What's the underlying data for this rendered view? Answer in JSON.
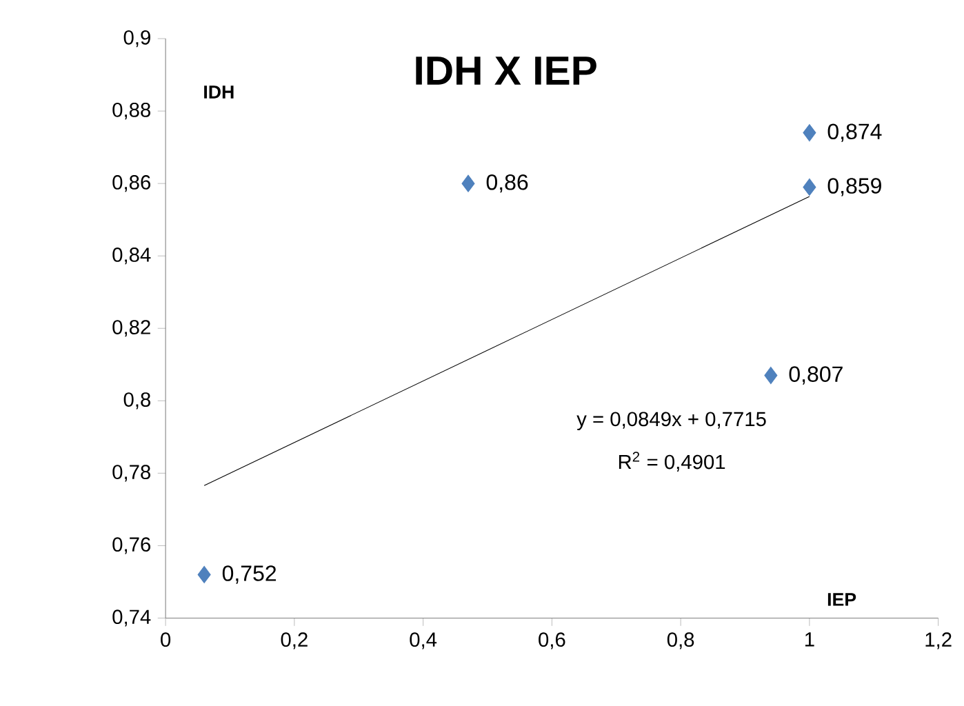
{
  "chart_data": {
    "type": "scatter",
    "title": "IDH X IEP",
    "xlabel": "IEP",
    "ylabel": "IDH",
    "xlim": [
      0,
      1.2
    ],
    "ylim": [
      0.74,
      0.9
    ],
    "xticks": [
      0,
      {
        "value": 0.2,
        "label": "0,2"
      },
      {
        "value": 0.4,
        "label": "0,4"
      },
      {
        "value": 0.6,
        "label": "0,6"
      },
      {
        "value": 0.8,
        "label": "0,8"
      },
      1,
      {
        "value": 1.2,
        "label": "1,2"
      }
    ],
    "yticks": [
      {
        "value": 0.74,
        "label": "0,74"
      },
      {
        "value": 0.76,
        "label": "0,76"
      },
      {
        "value": 0.78,
        "label": "0,78"
      },
      {
        "value": 0.8,
        "label": "0,8"
      },
      {
        "value": 0.82,
        "label": "0,82"
      },
      {
        "value": 0.84,
        "label": "0,84"
      },
      {
        "value": 0.86,
        "label": "0,86"
      },
      {
        "value": 0.88,
        "label": "0,88"
      },
      {
        "value": 0.9,
        "label": "0,9"
      }
    ],
    "grid": false,
    "legend": false,
    "marker": "diamond",
    "series": [
      {
        "color": "#4f81bd",
        "x": [
          0.06,
          0.47,
          1,
          1,
          0.94
        ],
        "values": [
          0.752,
          0.86,
          0.874,
          0.859,
          0.807
        ],
        "value_labels": [
          "0,752",
          "0,86",
          "0,874",
          "0,859",
          "0,807"
        ]
      },
      {
        "type": "line",
        "color": "#000000",
        "marker": "none",
        "x": [
          0.06,
          1
        ],
        "values": [
          0.7766,
          0.8564
        ]
      }
    ],
    "annotations": [
      "y = 0,0849x + 0,7715",
      "R$^{2}$ = 0,4901"
    ]
  }
}
